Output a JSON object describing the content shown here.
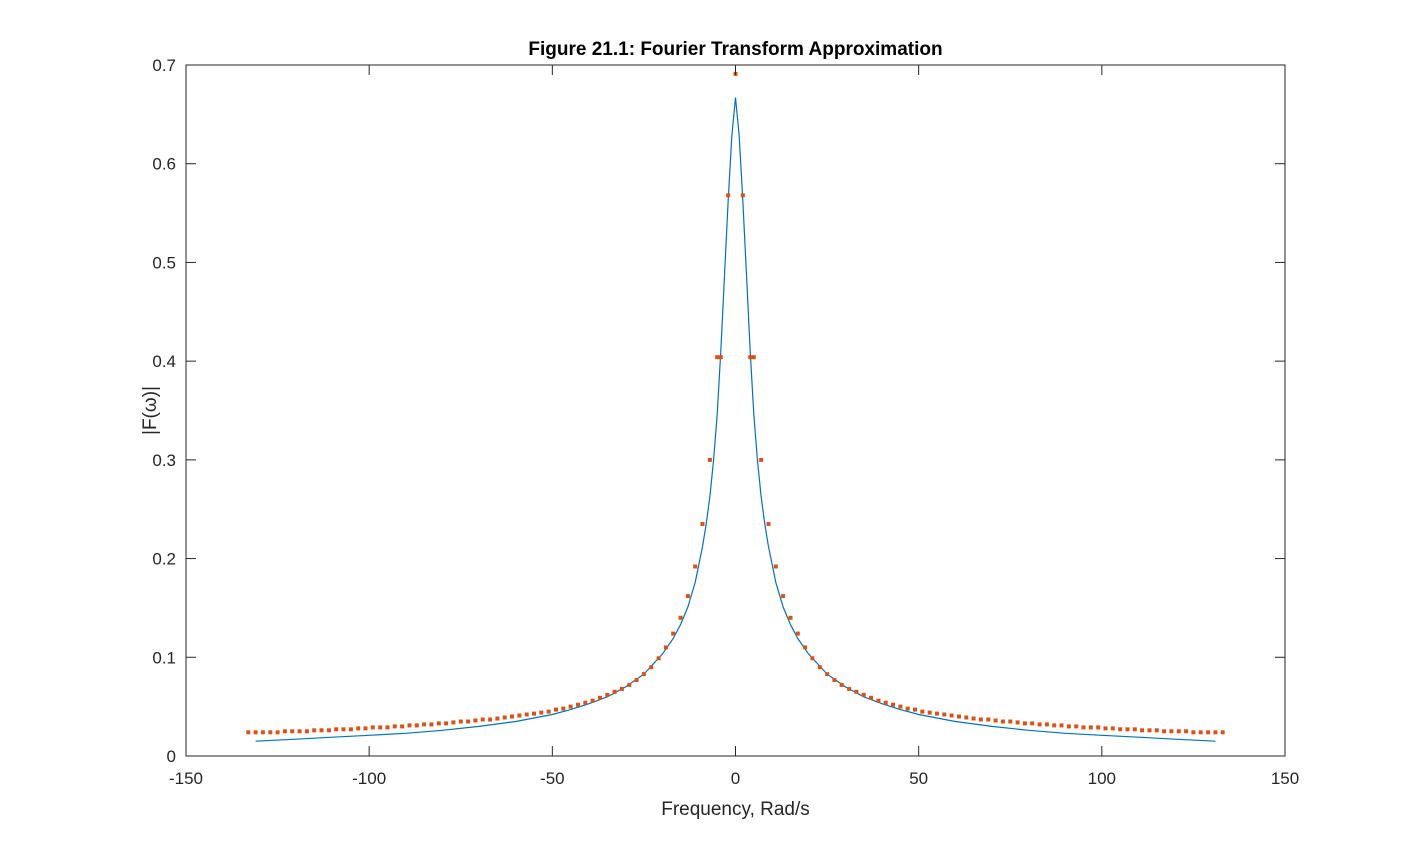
{
  "chart_data": {
    "type": "line",
    "title": "Figure 21.1: Fourier Transform Approximation",
    "xlabel": "Frequency, Rad/s",
    "ylabel": "|F(ω)|",
    "xlim": [
      -150,
      150
    ],
    "ylim": [
      0,
      0.7
    ],
    "xticks": [
      -150,
      -100,
      -50,
      0,
      50,
      100,
      150
    ],
    "xtick_labels": [
      "-150",
      "-100",
      "-50",
      "0",
      "50",
      "100",
      "150"
    ],
    "yticks": [
      0,
      0.1,
      0.2,
      0.3,
      0.4,
      0.5,
      0.6,
      0.7
    ],
    "ytick_labels": [
      "0",
      "0.1",
      "0.2",
      "0.3",
      "0.4",
      "0.5",
      "0.6",
      "0.7"
    ],
    "grid": false,
    "box": true,
    "colors": {
      "line": "#0072BD",
      "points": "#D95319",
      "axes": "#262626"
    },
    "series": [
      {
        "style": "line",
        "x": [
          -131,
          -120,
          -110,
          -100,
          -90,
          -80,
          -70,
          -60,
          -50,
          -45,
          -40,
          -35,
          -30,
          -25,
          -20,
          -17,
          -15,
          -13,
          -11,
          -9,
          -8,
          -7,
          -6,
          -5,
          -4,
          -3,
          -2,
          -1,
          0,
          1,
          2,
          3,
          4,
          5,
          6,
          7,
          8,
          9,
          11,
          13,
          15,
          17,
          20,
          25,
          30,
          35,
          40,
          45,
          50,
          60,
          70,
          80,
          90,
          100,
          110,
          120,
          131
        ],
        "y": [
          0.015,
          0.017,
          0.019,
          0.021,
          0.023,
          0.026,
          0.03,
          0.035,
          0.042,
          0.047,
          0.053,
          0.06,
          0.07,
          0.083,
          0.103,
          0.119,
          0.133,
          0.151,
          0.176,
          0.212,
          0.235,
          0.263,
          0.299,
          0.346,
          0.41,
          0.487,
          0.563,
          0.628,
          0.667,
          0.628,
          0.563,
          0.487,
          0.41,
          0.346,
          0.299,
          0.263,
          0.235,
          0.212,
          0.176,
          0.151,
          0.133,
          0.119,
          0.103,
          0.083,
          0.07,
          0.06,
          0.053,
          0.047,
          0.042,
          0.035,
          0.03,
          0.026,
          0.023,
          0.021,
          0.019,
          0.017,
          0.015
        ]
      },
      {
        "style": "points",
        "x": [
          -133,
          -131,
          -129,
          -127,
          -125,
          -123,
          -121,
          -119,
          -117,
          -115,
          -113,
          -111,
          -109,
          -107,
          -105,
          -103,
          -101,
          -99,
          -97,
          -95,
          -93,
          -91,
          -89,
          -87,
          -85,
          -83,
          -81,
          -79,
          -77,
          -75,
          -73,
          -71,
          -69,
          -67,
          -65,
          -63,
          -61,
          -59,
          -57,
          -55,
          -53,
          -51,
          -49,
          -47,
          -45,
          -43,
          -41,
          -39,
          -37,
          -35,
          -33,
          -31,
          -29,
          -27,
          -25,
          -23,
          -21,
          -19,
          -17,
          -15,
          -13,
          -11,
          -9,
          -7,
          -5,
          -4,
          -2,
          0,
          2,
          4,
          5,
          7,
          9,
          11,
          13,
          15,
          17,
          19,
          21,
          23,
          25,
          27,
          29,
          31,
          33,
          35,
          37,
          39,
          41,
          43,
          45,
          47,
          49,
          51,
          53,
          55,
          57,
          59,
          61,
          63,
          65,
          67,
          69,
          71,
          73,
          75,
          77,
          79,
          81,
          83,
          85,
          87,
          89,
          91,
          93,
          95,
          97,
          99,
          101,
          103,
          105,
          107,
          109,
          111,
          113,
          115,
          117,
          119,
          121,
          123,
          125,
          127,
          129,
          131,
          133
        ],
        "y": [
          0.024,
          0.024,
          0.024,
          0.024,
          0.024,
          0.025,
          0.025,
          0.025,
          0.025,
          0.026,
          0.026,
          0.026,
          0.027,
          0.027,
          0.027,
          0.028,
          0.028,
          0.029,
          0.029,
          0.029,
          0.03,
          0.03,
          0.031,
          0.031,
          0.032,
          0.032,
          0.033,
          0.033,
          0.034,
          0.035,
          0.035,
          0.036,
          0.037,
          0.037,
          0.038,
          0.039,
          0.04,
          0.041,
          0.042,
          0.043,
          0.044,
          0.045,
          0.047,
          0.048,
          0.05,
          0.052,
          0.054,
          0.056,
          0.059,
          0.062,
          0.065,
          0.068,
          0.072,
          0.077,
          0.083,
          0.09,
          0.099,
          0.11,
          0.124,
          0.14,
          0.162,
          0.192,
          0.235,
          0.3,
          0.404,
          0.404,
          0.568,
          0.691,
          0.568,
          0.404,
          0.404,
          0.3,
          0.235,
          0.192,
          0.162,
          0.14,
          0.124,
          0.11,
          0.099,
          0.09,
          0.083,
          0.077,
          0.072,
          0.068,
          0.065,
          0.062,
          0.059,
          0.056,
          0.054,
          0.052,
          0.05,
          0.048,
          0.047,
          0.045,
          0.044,
          0.043,
          0.042,
          0.041,
          0.04,
          0.039,
          0.038,
          0.037,
          0.037,
          0.036,
          0.035,
          0.035,
          0.034,
          0.033,
          0.033,
          0.032,
          0.032,
          0.031,
          0.031,
          0.03,
          0.03,
          0.029,
          0.029,
          0.029,
          0.028,
          0.028,
          0.027,
          0.027,
          0.027,
          0.026,
          0.026,
          0.026,
          0.025,
          0.025,
          0.025,
          0.025,
          0.024,
          0.024,
          0.024,
          0.024,
          0.024
        ]
      }
    ]
  }
}
